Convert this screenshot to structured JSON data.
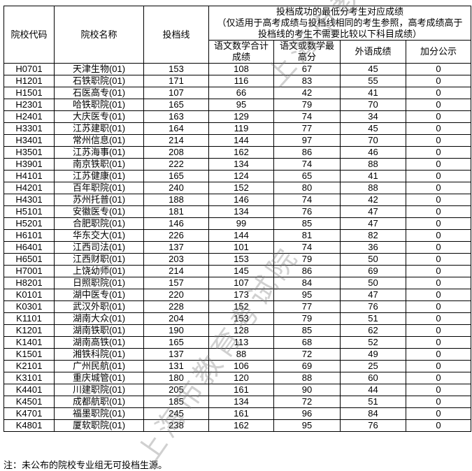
{
  "headers": {
    "code": "院校代码",
    "name": "院校名称",
    "line": "投档线",
    "group_title": "投档成功的最低分考生对应成绩",
    "group_note1": "（仅适用于高考成绩与投档线相同的考生参照，高考成绩高于",
    "group_note2": "投档线的考生不需要比较以下科目成绩）",
    "sub1a": "语文数学合计",
    "sub1b": "成绩",
    "sub2a": "语文或数学最",
    "sub2b": "高分",
    "sub3": "外语成绩",
    "sub4": "加分公示"
  },
  "rows": [
    [
      "H0701",
      "天津生物(01)",
      "153",
      "108",
      "67",
      "45",
      "0"
    ],
    [
      "H1201",
      "石铁职院(01)",
      "171",
      "116",
      "83",
      "55",
      "0"
    ],
    [
      "H1501",
      "石医高专(01)",
      "107",
      "66",
      "42",
      "41",
      "0"
    ],
    [
      "H2301",
      "哈铁职院(01)",
      "165",
      "95",
      "79",
      "70",
      "0"
    ],
    [
      "H2401",
      "大庆医专(01)",
      "163",
      "129",
      "74",
      "34",
      "0"
    ],
    [
      "H3301",
      "江苏建职(01)",
      "164",
      "119",
      "77",
      "45",
      "0"
    ],
    [
      "H3401",
      "常州信息(01)",
      "214",
      "144",
      "97",
      "70",
      "0"
    ],
    [
      "H3501",
      "江苏海事(01)",
      "208",
      "162",
      "86",
      "46",
      "0"
    ],
    [
      "H3901",
      "南京铁职(01)",
      "222",
      "134",
      "74",
      "88",
      "0"
    ],
    [
      "H4101",
      "江苏健康(01)",
      "165",
      "124",
      "65",
      "41",
      "0"
    ],
    [
      "H4201",
      "百年职院(01)",
      "240",
      "152",
      "80",
      "88",
      "0"
    ],
    [
      "H4301",
      "苏州托普(01)",
      "188",
      "146",
      "74",
      "42",
      "0"
    ],
    [
      "H5101",
      "安徽医专(01)",
      "181",
      "134",
      "76",
      "47",
      "0"
    ],
    [
      "H5201",
      "合肥职院(01)",
      "146",
      "99",
      "85",
      "47",
      "0"
    ],
    [
      "H6101",
      "华东交大(01)",
      "226",
      "144",
      "81",
      "82",
      "0"
    ],
    [
      "H6401",
      "江西司法(01)",
      "137",
      "101",
      "74",
      "36",
      "0"
    ],
    [
      "H6501",
      "江西财职(01)",
      "203",
      "153",
      "79",
      "50",
      "0"
    ],
    [
      "H7001",
      "上饶幼师(01)",
      "214",
      "145",
      "86",
      "69",
      "0"
    ],
    [
      "H8201",
      "日照职院(01)",
      "157",
      "107",
      "84",
      "50",
      "0"
    ],
    [
      "K0101",
      "湖中医专(01)",
      "220",
      "173",
      "95",
      "47",
      "0"
    ],
    [
      "K0301",
      "武汉外职(01)",
      "228",
      "152",
      "77",
      "76",
      "0"
    ],
    [
      "K1101",
      "湖南大众(01)",
      "204",
      "153",
      "79",
      "51",
      "0"
    ],
    [
      "K1201",
      "湖南铁职(01)",
      "190",
      "128",
      "85",
      "62",
      "0"
    ],
    [
      "K1401",
      "湖南高铁(01)",
      "165",
      "113",
      "68",
      "52",
      "0"
    ],
    [
      "K1501",
      "湘铁科院(01)",
      "137",
      "88",
      "72",
      "49",
      "0"
    ],
    [
      "K2101",
      "广州民航(01)",
      "131",
      "106",
      "69",
      "25",
      "0"
    ],
    [
      "K3101",
      "重庆城管(01)",
      "180",
      "120",
      "88",
      "60",
      "0"
    ],
    [
      "K4401",
      "川建职院(01)",
      "205",
      "161",
      "90",
      "44",
      "0"
    ],
    [
      "K4501",
      "成都航职(01)",
      "185",
      "134",
      "72",
      "51",
      "0"
    ],
    [
      "K4701",
      "福墨职院(01)",
      "245",
      "161",
      "96",
      "84",
      "0"
    ],
    [
      "K4801",
      "厦软职院(01)",
      "238",
      "162",
      "95",
      "76",
      "0"
    ]
  ],
  "note": "注：未公布的院校专业组无可投档生源。",
  "watermark": "上海市教育考试院"
}
